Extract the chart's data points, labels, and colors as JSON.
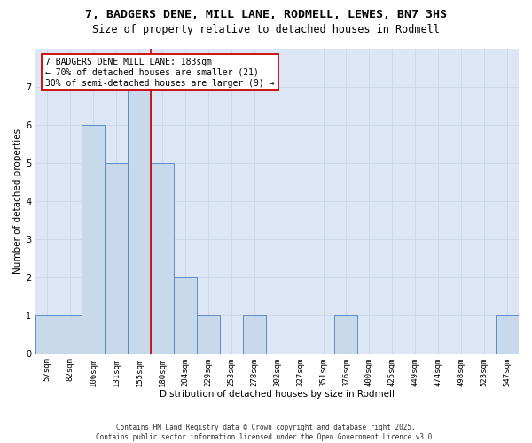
{
  "title1": "7, BADGERS DENE, MILL LANE, RODMELL, LEWES, BN7 3HS",
  "title2": "Size of property relative to detached houses in Rodmell",
  "xlabel": "Distribution of detached houses by size in Rodmell",
  "ylabel": "Number of detached properties",
  "categories": [
    "57sqm",
    "82sqm",
    "106sqm",
    "131sqm",
    "155sqm",
    "180sqm",
    "204sqm",
    "229sqm",
    "253sqm",
    "278sqm",
    "302sqm",
    "327sqm",
    "351sqm",
    "376sqm",
    "400sqm",
    "425sqm",
    "449sqm",
    "474sqm",
    "498sqm",
    "523sqm",
    "547sqm"
  ],
  "values": [
    1,
    1,
    6,
    5,
    7,
    5,
    2,
    1,
    0,
    1,
    0,
    0,
    0,
    1,
    0,
    0,
    0,
    0,
    0,
    0,
    1
  ],
  "bar_color": "#c9d9ec",
  "bar_edge_color": "#5b8ec4",
  "vline_index": 5,
  "vline_color": "#cc0000",
  "annotation_text": "7 BADGERS DENE MILL LANE: 183sqm\n← 70% of detached houses are smaller (21)\n30% of semi-detached houses are larger (9) →",
  "annotation_box_color": "#ffffff",
  "annotation_box_edge": "#cc0000",
  "ylim": [
    0,
    8
  ],
  "yticks": [
    0,
    1,
    2,
    3,
    4,
    5,
    6,
    7
  ],
  "grid_color": "#cdd8ea",
  "bg_color": "#dce6f5",
  "footer": "Contains HM Land Registry data © Crown copyright and database right 2025.\nContains public sector information licensed under the Open Government Licence v3.0.",
  "title_fontsize": 9.5,
  "subtitle_fontsize": 8.5,
  "axis_label_fontsize": 7.5,
  "tick_fontsize": 6.5,
  "annotation_fontsize": 7,
  "footer_fontsize": 5.5
}
